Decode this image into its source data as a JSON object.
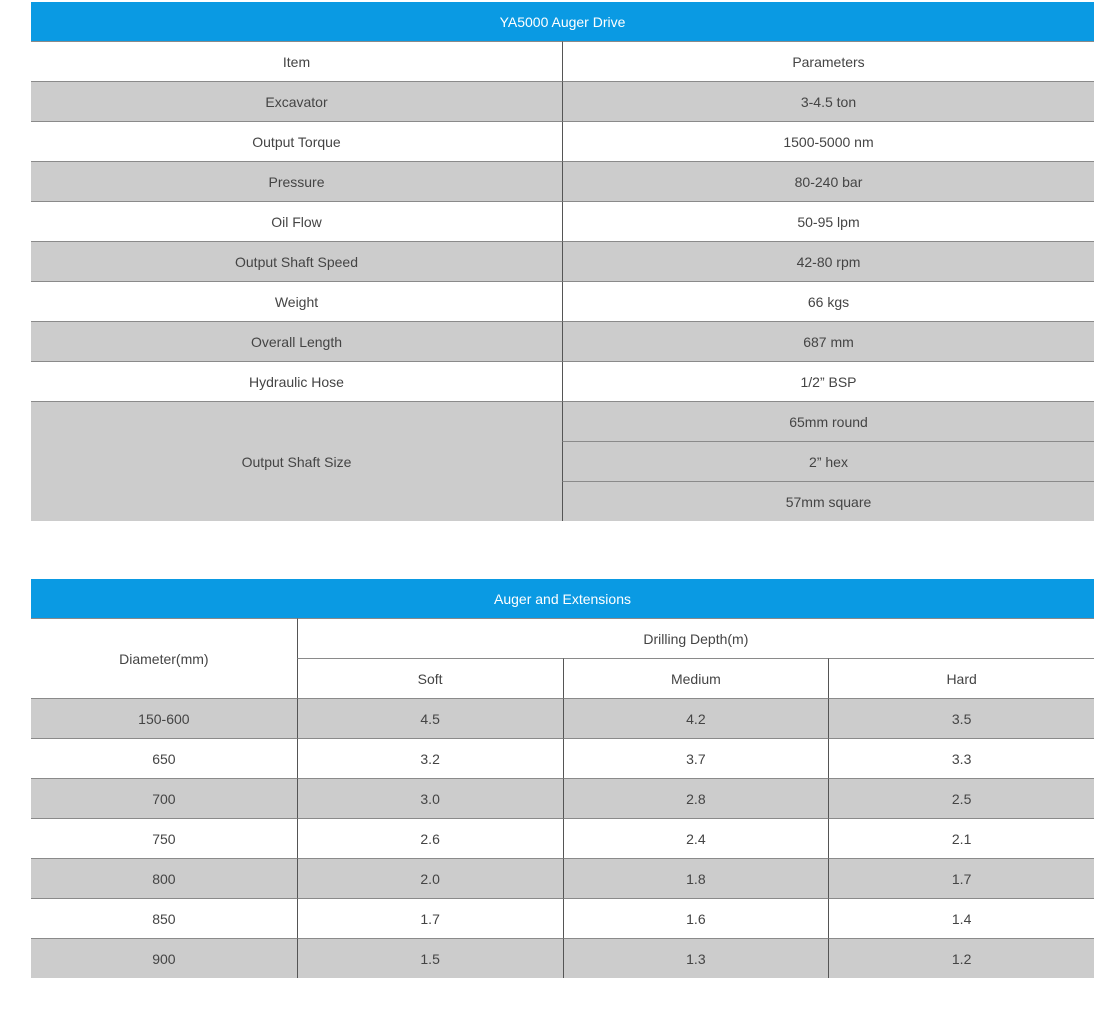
{
  "table1": {
    "title": "YA5000 Auger Drive",
    "header": [
      "Item",
      "Parameters"
    ],
    "rows": [
      [
        "Excavator",
        "3-4.5 ton"
      ],
      [
        "Output Torque",
        "1500-5000 nm"
      ],
      [
        "Pressure",
        "80-240 bar"
      ],
      [
        "Oil Flow",
        "50-95 lpm"
      ],
      [
        "Output Shaft Speed",
        "42-80 rpm"
      ],
      [
        "Weight",
        "66 kgs"
      ],
      [
        "Overall Length",
        "687 mm"
      ],
      [
        "Hydraulic Hose",
        "1/2” BSP"
      ]
    ],
    "shaft": {
      "label": "Output Shaft Size",
      "values": [
        "65mm round",
        "2” hex",
        "57mm square"
      ]
    }
  },
  "table2": {
    "title": "Auger and Extensions",
    "diameter_header": "Diameter(mm)",
    "depth_header": "Drilling Depth(m)",
    "columns": [
      "Soft",
      "Medium",
      "Hard"
    ],
    "rows": [
      [
        "150-600",
        "4.5",
        "4.2",
        "3.5"
      ],
      [
        "650",
        "3.2",
        "3.7",
        "3.3"
      ],
      [
        "700",
        "3.0",
        "2.8",
        "2.5"
      ],
      [
        "750",
        "2.6",
        "2.4",
        "2.1"
      ],
      [
        "800",
        "2.0",
        "1.8",
        "1.7"
      ],
      [
        "850",
        "1.7",
        "1.6",
        "1.4"
      ],
      [
        "900",
        "1.5",
        "1.3",
        "1.2"
      ]
    ]
  }
}
